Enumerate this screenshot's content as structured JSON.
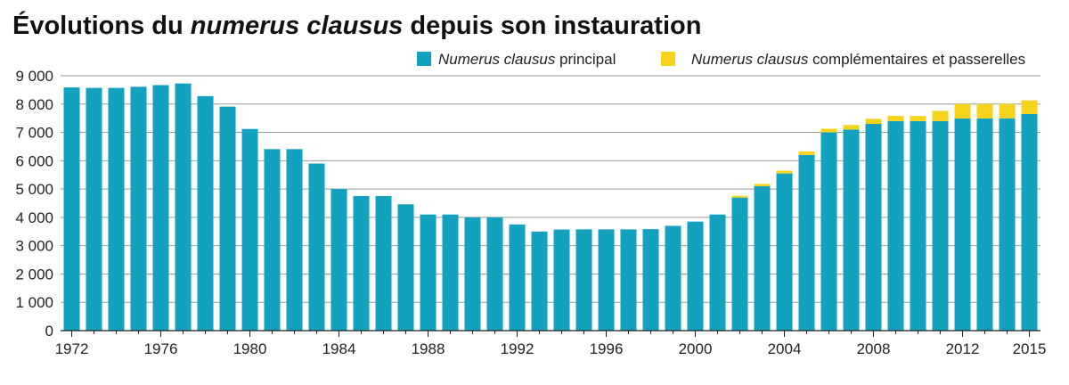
{
  "title": {
    "part1": "Évolutions du ",
    "italic": "numerus clausus",
    "part2": " depuis son instauration"
  },
  "legend": [
    {
      "italic": "Numerus clausus",
      "rest": " principal",
      "color": "#12a1bf"
    },
    {
      "italic": "Numerus clausus",
      "rest": " complémentaires et passerelles",
      "color": "#f7d31b"
    }
  ],
  "chart_data": {
    "type": "bar",
    "stacked": true,
    "x": [
      1972,
      1973,
      1974,
      1975,
      1976,
      1977,
      1978,
      1979,
      1980,
      1981,
      1982,
      1983,
      1984,
      1985,
      1986,
      1987,
      1988,
      1989,
      1990,
      1991,
      1992,
      1993,
      1994,
      1995,
      1996,
      1997,
      1998,
      1999,
      2000,
      2001,
      2002,
      2003,
      2004,
      2005,
      2006,
      2007,
      2008,
      2009,
      2010,
      2011,
      2012,
      2013,
      2014,
      2015
    ],
    "series": [
      {
        "name": "Numerus clausus principal",
        "color": "#12a1bf",
        "values": [
          8588,
          8571,
          8570,
          8610,
          8671,
          8728,
          8281,
          7910,
          7121,
          6409,
          6409,
          5900,
          5000,
          4754,
          4754,
          4460,
          4100,
          4100,
          4000,
          4000,
          3750,
          3500,
          3570,
          3576,
          3576,
          3576,
          3583,
          3700,
          3850,
          4100,
          4700,
          5100,
          5550,
          6200,
          7000,
          7100,
          7300,
          7400,
          7400,
          7400,
          7492,
          7492,
          7497,
          7650
        ]
      },
      {
        "name": "Numerus clausus complémentaires et passerelles",
        "color": "#f7d31b",
        "values": [
          0,
          0,
          0,
          0,
          0,
          0,
          0,
          0,
          0,
          0,
          0,
          0,
          0,
          0,
          0,
          0,
          0,
          0,
          0,
          0,
          0,
          0,
          0,
          0,
          0,
          0,
          0,
          0,
          0,
          0,
          60,
          80,
          100,
          130,
          130,
          160,
          180,
          180,
          180,
          360,
          510,
          510,
          510,
          480
        ]
      }
    ],
    "x_tick_labels": [
      "1972",
      "1976",
      "1980",
      "1984",
      "1988",
      "1992",
      "1996",
      "2000",
      "2004",
      "2008",
      "2012",
      "2015"
    ],
    "y_tick_labels": [
      "0",
      "1 000",
      "2 000",
      "3 000",
      "4 000",
      "5 000",
      "6 000",
      "7 000",
      "8 000",
      "9 000"
    ],
    "y_ticks": [
      0,
      1000,
      2000,
      3000,
      4000,
      5000,
      6000,
      7000,
      8000,
      9000
    ],
    "ylim": [
      0,
      9000
    ],
    "grid": "horizontal",
    "legend_position": "top-right"
  }
}
